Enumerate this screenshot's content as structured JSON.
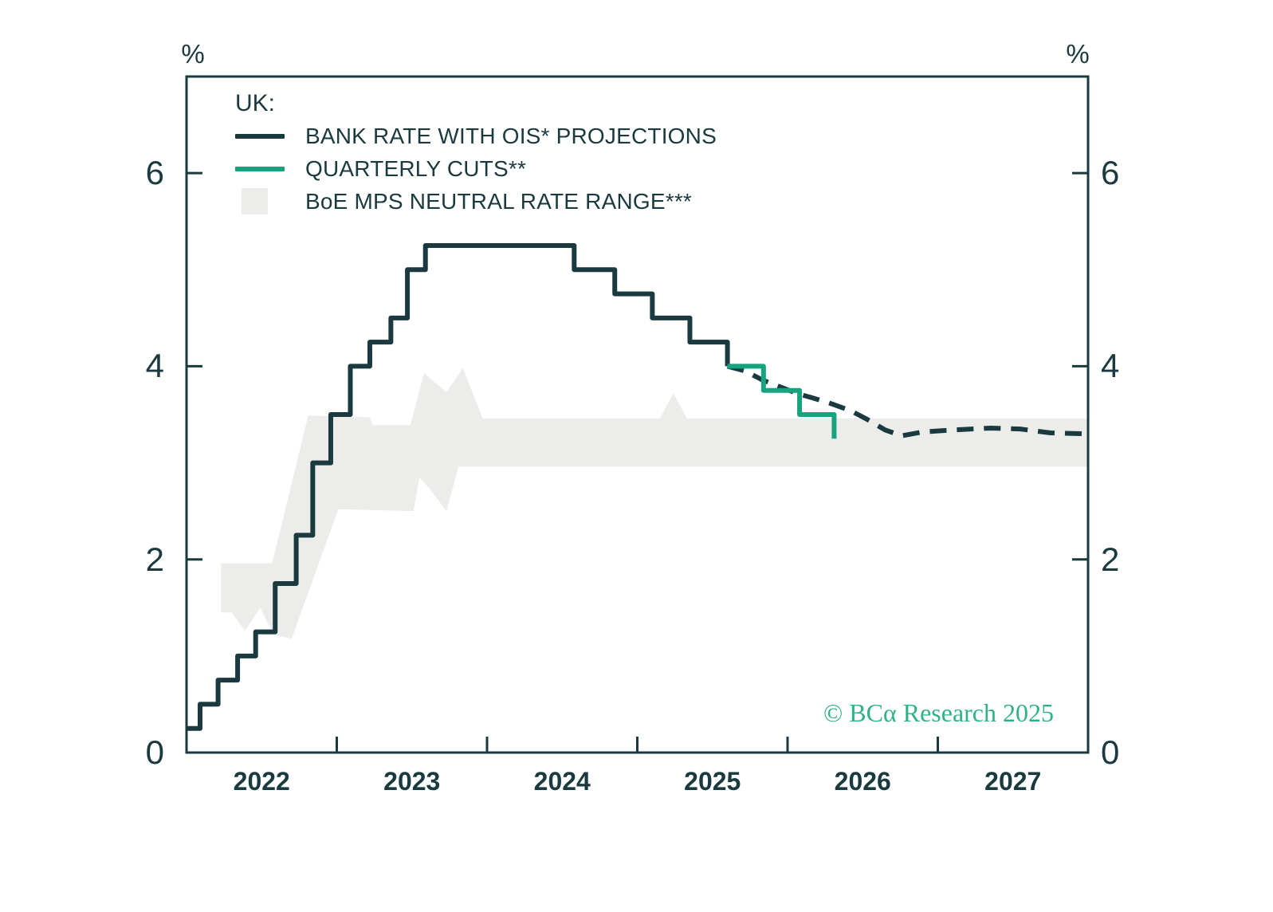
{
  "colors": {
    "dark": "#1b3a3f",
    "green": "#16a37d",
    "band": "#ececea",
    "watermark": "#2fb286",
    "background": "#ffffff"
  },
  "legend": {
    "title": "UK:",
    "items": [
      {
        "swatch": "line",
        "color_ref": "dark",
        "label": "BANK RATE WITH OIS* PROJECTIONS"
      },
      {
        "swatch": "line",
        "color_ref": "green",
        "label": "QUARTERLY CUTS**"
      },
      {
        "swatch": "box",
        "color_ref": "band",
        "label": "BoE MPS NEUTRAL RATE RANGE***"
      }
    ]
  },
  "watermark": "© BCα Research 2025",
  "chart_data": {
    "type": "line",
    "unit": "%",
    "xlim": [
      2022,
      2028
    ],
    "ylim": [
      0,
      7
    ],
    "grid": false,
    "x_axis": {
      "tick_positions": [
        2023,
        2024,
        2025,
        2026,
        2027
      ],
      "labels": [
        {
          "text": "2022",
          "x": 2022.5
        },
        {
          "text": "2023",
          "x": 2023.5
        },
        {
          "text": "2024",
          "x": 2024.5
        },
        {
          "text": "2025",
          "x": 2025.5
        },
        {
          "text": "2026",
          "x": 2026.5
        },
        {
          "text": "2027",
          "x": 2027.5
        }
      ]
    },
    "y_axis": {
      "ticks": [
        0,
        2,
        4,
        6
      ],
      "unit": "%",
      "labels_both_sides": true
    },
    "series": [
      {
        "id": "bank-rate-ois",
        "name": "BANK RATE WITH OIS* PROJECTIONS",
        "render": "step",
        "line_style": "solid",
        "color_ref": "dark",
        "points": [
          [
            2022.0,
            0.25
          ],
          [
            2022.09,
            0.5
          ],
          [
            2022.21,
            0.75
          ],
          [
            2022.34,
            1.0
          ],
          [
            2022.46,
            1.25
          ],
          [
            2022.59,
            1.75
          ],
          [
            2022.73,
            2.25
          ],
          [
            2022.84,
            3.0
          ],
          [
            2022.96,
            3.5
          ],
          [
            2023.09,
            4.0
          ],
          [
            2023.22,
            4.25
          ],
          [
            2023.36,
            4.5
          ],
          [
            2023.47,
            5.0
          ],
          [
            2023.59,
            5.25
          ],
          [
            2024.58,
            5.0
          ],
          [
            2024.85,
            4.75
          ],
          [
            2025.1,
            4.5
          ],
          [
            2025.35,
            4.25
          ],
          [
            2025.6,
            4.0
          ]
        ]
      },
      {
        "id": "ois-projection",
        "name": "BANK RATE WITH OIS* PROJECTIONS (dashed projection segment)",
        "render": "line",
        "line_style": "dashed",
        "color_ref": "dark",
        "points": [
          [
            2025.6,
            4.0
          ],
          [
            2025.72,
            3.95
          ],
          [
            2025.83,
            3.86
          ],
          [
            2026.06,
            3.72
          ],
          [
            2026.26,
            3.63
          ],
          [
            2026.42,
            3.54
          ],
          [
            2026.53,
            3.45
          ],
          [
            2026.65,
            3.34
          ],
          [
            2026.76,
            3.28
          ],
          [
            2026.9,
            3.32
          ],
          [
            2027.1,
            3.34
          ],
          [
            2027.35,
            3.36
          ],
          [
            2027.55,
            3.35
          ],
          [
            2027.75,
            3.31
          ],
          [
            2028.0,
            3.3
          ]
        ]
      },
      {
        "id": "quarterly-cuts",
        "name": "QUARTERLY CUTS**",
        "render": "step",
        "line_style": "solid",
        "color_ref": "green",
        "points": [
          [
            2025.6,
            4.0
          ],
          [
            2025.84,
            3.75
          ],
          [
            2026.08,
            3.5
          ],
          [
            2026.31,
            3.25
          ]
        ]
      },
      {
        "id": "neutral-range",
        "name": "BoE MPS NEUTRAL RATE RANGE***",
        "render": "band",
        "color_ref": "band",
        "top": [
          [
            2022.23,
            1.96
          ],
          [
            2022.57,
            1.96
          ],
          [
            2022.81,
            3.49
          ],
          [
            2023.22,
            3.47
          ],
          [
            2023.24,
            3.39
          ],
          [
            2023.49,
            3.39
          ],
          [
            2023.58,
            3.93
          ],
          [
            2023.73,
            3.73
          ],
          [
            2023.84,
            3.98
          ],
          [
            2023.97,
            3.46
          ],
          [
            2025.15,
            3.46
          ],
          [
            2025.24,
            3.72
          ],
          [
            2025.33,
            3.46
          ],
          [
            2028.0,
            3.46
          ]
        ],
        "bottom": [
          [
            2022.23,
            1.45
          ],
          [
            2022.3,
            1.45
          ],
          [
            2022.39,
            1.26
          ],
          [
            2022.49,
            1.5
          ],
          [
            2022.58,
            1.22
          ],
          [
            2022.7,
            1.18
          ],
          [
            2023.01,
            2.52
          ],
          [
            2023.51,
            2.5
          ],
          [
            2023.55,
            2.85
          ],
          [
            2023.63,
            2.71
          ],
          [
            2023.73,
            2.5
          ],
          [
            2023.81,
            2.96
          ],
          [
            2028.0,
            2.96
          ]
        ]
      }
    ]
  }
}
